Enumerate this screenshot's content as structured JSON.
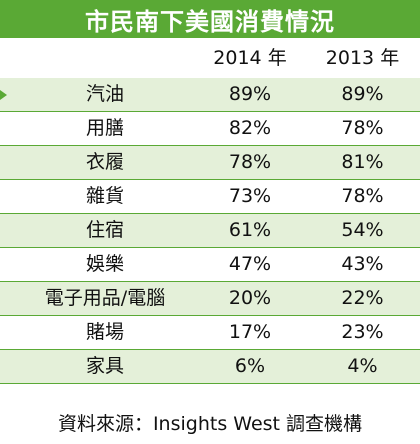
{
  "chart_data": {
    "type": "table",
    "title": "市民南下美國消費情況",
    "columns": [
      "",
      "2014 年",
      "2013 年"
    ],
    "categories": [
      "汽油",
      "用膳",
      "衣履",
      "雜貨",
      "住宿",
      "娛樂",
      "電子用品/電腦",
      "賭場",
      "家具"
    ],
    "series": [
      {
        "name": "2014 年",
        "values": [
          89,
          82,
          78,
          73,
          61,
          47,
          20,
          17,
          6
        ]
      },
      {
        "name": "2013 年",
        "values": [
          89,
          78,
          81,
          78,
          54,
          43,
          22,
          23,
          4
        ]
      }
    ],
    "display": {
      "2014 年": [
        "89%",
        "82%",
        "78%",
        "73%",
        "61%",
        "47%",
        "20%",
        "17%",
        "6%"
      ],
      "2013 年": [
        "89%",
        "78%",
        "81%",
        "78%",
        "54%",
        "43%",
        "22%",
        "23%",
        "4%"
      ]
    },
    "unit": "%",
    "source": "資料來源：Insights West 調查機構"
  },
  "colors": {
    "accent": "#5aa935",
    "row_shade": "#e4f0d9"
  },
  "icons": [
    "arrow-icon"
  ]
}
